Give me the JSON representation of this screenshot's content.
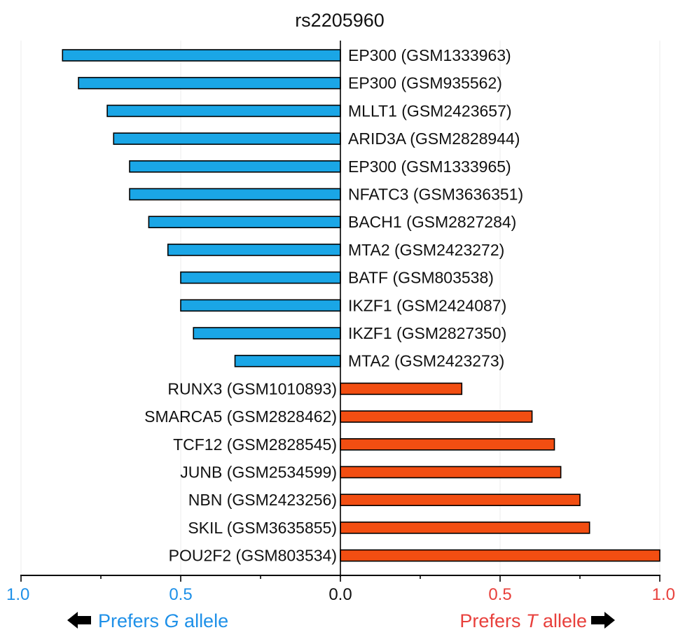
{
  "chart_data": {
    "type": "bar",
    "orientation": "horizontal-diverging",
    "title": "rs2205960",
    "categories": [
      "EP300 (GSM1333963)",
      "EP300 (GSM935562)",
      "MLLT1 (GSM2423657)",
      "ARID3A (GSM2828944)",
      "EP300 (GSM1333965)",
      "NFATC3 (GSM3636351)",
      "BACH1 (GSM2827284)",
      "MTA2 (GSM2423272)",
      "BATF (GSM803538)",
      "IKZF1 (GSM2424087)",
      "IKZF1 (GSM2827350)",
      "MTA2 (GSM2423273)",
      "RUNX3 (GSM1010893)",
      "SMARCA5 (GSM2828462)",
      "TCF12 (GSM2828545)",
      "JUNB (GSM2534599)",
      "NBN (GSM2423256)",
      "SKIL (GSM3635855)",
      "POU2F2 (GSM803534)"
    ],
    "values": [
      -0.87,
      -0.82,
      -0.73,
      -0.71,
      -0.66,
      -0.66,
      -0.6,
      -0.54,
      -0.5,
      -0.5,
      -0.46,
      -0.33,
      0.38,
      0.6,
      0.67,
      0.69,
      0.75,
      0.78,
      1.0
    ],
    "xlim": [
      -1.0,
      1.0
    ],
    "ticks": [
      {
        "value": -1.0,
        "label": "1.0"
      },
      {
        "value": -0.5,
        "label": "0.5"
      },
      {
        "value": 0.0,
        "label": "0.0"
      },
      {
        "value": 0.5,
        "label": "0.5"
      },
      {
        "value": 1.0,
        "label": "1.0"
      }
    ],
    "grid": true,
    "colors": {
      "g_allele": "#1aa6e6",
      "t_allele": "#f24e12",
      "g_text": "#1e90e8",
      "t_text": "#e8403c",
      "neutral": "#111111"
    },
    "left_caption": {
      "text_before": "Prefers ",
      "allele": "G",
      "text_after": " allele"
    },
    "right_caption": {
      "text_before": "Prefers ",
      "allele": "T",
      "text_after": " allele"
    }
  }
}
